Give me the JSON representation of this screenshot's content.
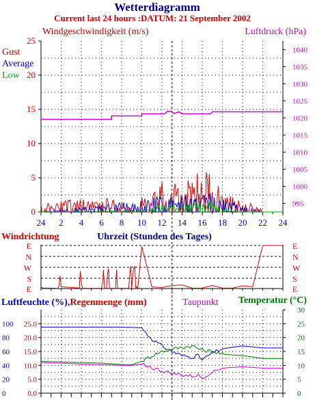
{
  "header": {
    "title": "Wetterdiagramm",
    "subtitle": "Current last 24 hours :DATUM: 21 September 2002"
  },
  "colors": {
    "title": "#00008b",
    "subtitle": "#cc0000",
    "gust": "#dd0000",
    "average": "#0000cc",
    "low": "#00aa00",
    "pressure": "#cc00cc",
    "humidity": "#0000cc",
    "rain": "#cc0000",
    "dewpoint": "#cc00cc",
    "temperature": "#007700",
    "axis": "#000000",
    "grid": "#000000"
  },
  "chart_data": [
    {
      "type": "line",
      "id": "wind",
      "left_label": "Windgeschwindigkeit (m/s)",
      "right_label": "Luftdruck (hPa)",
      "legend": [
        "Gust",
        "Average",
        "Low"
      ],
      "x_ticks": [
        "24",
        "2",
        "4",
        "6",
        "8",
        "10",
        "12",
        "14",
        "16",
        "18",
        "20",
        "22",
        "24"
      ],
      "y_left_ticks": [
        "0",
        "5",
        "10",
        "15",
        "20",
        "25"
      ],
      "y_right_ticks": [
        "995",
        "1000",
        "1005",
        "1010",
        "1015",
        "1020",
        "1025",
        "1030",
        "1035",
        "1040"
      ],
      "ylim_left": [
        0,
        25
      ],
      "ylim_right": [
        992.5,
        1042.5
      ],
      "current_marker_hour": 13,
      "series": [
        {
          "name": "Gust",
          "x": [
            0,
            1,
            2,
            3,
            4,
            5,
            6,
            7,
            8,
            9,
            9.9,
            10,
            11,
            12,
            13,
            14,
            15,
            16,
            16.5,
            17,
            18,
            19,
            20,
            21,
            21.7,
            22,
            24
          ],
          "values": [
            0.8,
            1.0,
            1.2,
            1.5,
            1.4,
            1.3,
            1.2,
            1.6,
            1.0,
            0.3,
            0.2,
            1.8,
            2.2,
            3.0,
            2.8,
            3.2,
            3.5,
            4.0,
            4.5,
            3.0,
            2.5,
            1.5,
            1.2,
            0.8,
            0.5,
            0,
            0
          ]
        },
        {
          "name": "Average",
          "x": [
            0,
            10,
            11,
            12,
            13,
            14,
            15,
            16,
            17,
            18,
            19,
            20,
            21,
            21.7,
            22,
            24
          ],
          "values": [
            0,
            1.2,
            1.4,
            1.6,
            1.5,
            1.7,
            1.6,
            1.8,
            1.8,
            1.4,
            1.0,
            0.6,
            0.3,
            0.1,
            0,
            0
          ]
        },
        {
          "name": "Low",
          "x": [
            0,
            10,
            11,
            12,
            13,
            14,
            15,
            16,
            17,
            18,
            19,
            20,
            21,
            22,
            24
          ],
          "values": [
            0,
            0.2,
            0.5,
            0.8,
            0.7,
            0.9,
            1.0,
            1.1,
            0.9,
            0.5,
            0.2,
            0,
            0,
            0,
            0
          ]
        },
        {
          "name": "Luftdruck",
          "axis": "right",
          "x": [
            0,
            7.0,
            7.0,
            10.0,
            10.0,
            12.3,
            12.5,
            12.9,
            13.2,
            13.7,
            14.0,
            14.2,
            16.8,
            17.0,
            24.0
          ],
          "values": [
            1019.6,
            1019.6,
            1020.6,
            1020.6,
            1021.2,
            1021.2,
            1021.9,
            1021.9,
            1021.3,
            1021.8,
            1021.2,
            1021.2,
            1021.2,
            1021.8,
            1021.8
          ]
        }
      ]
    },
    {
      "type": "line",
      "id": "direction",
      "left_label": "Windrichtung",
      "center_label": "Uhrzeit (Stunden des Tages)",
      "y_ticks": [
        "E",
        "N",
        "W",
        "S",
        "E"
      ],
      "series": [
        {
          "name": "Windrichtung",
          "x": [
            0,
            0.3,
            0.4,
            1.7,
            1.8,
            1.9,
            2.0,
            3.8,
            3.9,
            4.0,
            4.1,
            4.2,
            6.0,
            6.1,
            6.2,
            6.3,
            6.5,
            6.6,
            6.7,
            6.8,
            7.4,
            7.5,
            7.55,
            7.6,
            8.7,
            8.8,
            8.9,
            9.0,
            9.1,
            9.2,
            9.3,
            9.4,
            9.5,
            9.6,
            10.0,
            11.0,
            12.0,
            13.0,
            14.0,
            15.0,
            16.0,
            17.0,
            18.0,
            19.0,
            20.0,
            21.0,
            22.0,
            24.0
          ],
          "values": [
            105,
            98,
            100,
            98,
            120,
            200,
            110,
            100,
            240,
            150,
            100,
            98,
            98,
            140,
            250,
            98,
            98,
            220,
            260,
            98,
            98,
            250,
            160,
            98,
            98,
            200,
            280,
            98,
            200,
            260,
            280,
            98,
            110,
            100,
            95,
            100,
            110,
            115,
            112,
            110,
            108,
            112,
            110,
            110,
            108,
            100,
            90,
            90
          ]
        }
      ]
    },
    {
      "type": "line",
      "id": "humidity",
      "left_label_1": "Luftfeuchte (%)",
      "left_label_2": "Regenmenge (mm)",
      "center_label": "Taupunkt",
      "right_label": "Temperatur (°C)",
      "y_humidity_ticks": [
        "0",
        "20",
        "40",
        "60",
        "80",
        "100"
      ],
      "y_rain_ticks": [
        "0.0",
        "5.0",
        "10.0",
        "15.0",
        "20.0",
        "25.0"
      ],
      "y_temp_ticks": [
        "0",
        "5",
        "10",
        "15",
        "20",
        "25",
        "30"
      ],
      "ylim_humidity": [
        0,
        120
      ],
      "ylim_temp": [
        0,
        30
      ],
      "series": [
        {
          "name": "Luftfeuchte",
          "axis": "humidity",
          "x": [
            0,
            3,
            6,
            8,
            10,
            10.5,
            11,
            12,
            13,
            14,
            15,
            15.5,
            16,
            16.5,
            17,
            18,
            20,
            22,
            24
          ],
          "values": [
            95,
            95,
            95,
            95,
            94,
            85,
            78,
            68,
            60,
            54,
            52,
            55,
            48,
            53,
            58,
            64,
            68,
            65,
            65
          ]
        },
        {
          "name": "Temperatur",
          "axis": "temp",
          "x": [
            0,
            2,
            4,
            6,
            8,
            9,
            10,
            11,
            12,
            13,
            14,
            15,
            16,
            17,
            18,
            20,
            22,
            24
          ],
          "values": [
            11.5,
            11.2,
            11.0,
            10.8,
            10.3,
            10.2,
            11.5,
            13.5,
            15.0,
            15.8,
            16.5,
            17.0,
            15.5,
            15.0,
            14.0,
            13.5,
            12.5,
            12.5
          ]
        },
        {
          "name": "Taupunkt",
          "axis": "temp",
          "x": [
            0,
            2,
            4,
            6,
            8,
            9,
            10,
            10.5,
            11,
            12,
            13,
            14,
            15,
            15.5,
            16,
            16.5,
            17,
            18,
            20,
            22,
            24
          ],
          "values": [
            11.0,
            10.8,
            10.5,
            10.3,
            10.0,
            10.0,
            10.5,
            10.0,
            9.0,
            8.0,
            7.0,
            6.5,
            6.0,
            6.5,
            5.5,
            6.5,
            8.0,
            9.0,
            9.5,
            9.0,
            9.0
          ]
        }
      ]
    }
  ]
}
